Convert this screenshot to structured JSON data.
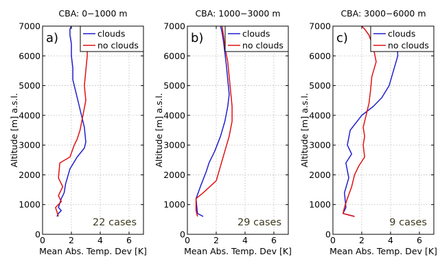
{
  "chart_data": [
    {
      "type": "line",
      "panel_label": "a)",
      "title": "CBA: 0−1000 m",
      "xlabel": "Mean Abs. Temp. Dev [K]",
      "ylabel": "Altitude [m] a.s.l.",
      "xlim": [
        0,
        7
      ],
      "ylim": [
        0,
        7000
      ],
      "xticks": [
        0,
        2,
        4,
        6
      ],
      "yticks": [
        0,
        1000,
        2000,
        3000,
        4000,
        5000,
        6000,
        7000
      ],
      "grid": true,
      "legend_position": "top-right",
      "annotation": "22 cases",
      "series": [
        {
          "name": "clouds",
          "color": "#1f1fcc",
          "x": [
            1.0,
            1.1,
            1.3,
            1.1,
            1.3,
            1.5,
            1.6,
            1.9,
            2.4,
            2.9,
            3.0,
            2.9,
            2.7,
            2.5,
            2.3,
            2.1,
            2.1,
            2.0,
            2.0,
            1.9,
            1.9,
            2.0
          ],
          "y": [
            600,
            700,
            800,
            900,
            1200,
            1400,
            1700,
            2200,
            2600,
            2900,
            3100,
            3600,
            4000,
            4400,
            4800,
            5200,
            5600,
            6000,
            6400,
            6700,
            6900,
            7000
          ]
        },
        {
          "name": "no clouds",
          "color": "#e01010",
          "x": [
            1.1,
            0.9,
            1.3,
            1.1,
            1.4,
            1.1,
            1.2,
            1.9,
            2.2,
            2.4,
            2.6,
            2.8,
            3.0,
            2.9,
            3.0,
            3.1,
            3.1,
            3.2,
            3.0,
            2.8,
            2.6
          ],
          "y": [
            600,
            900,
            1100,
            1300,
            1600,
            1900,
            2400,
            2600,
            3000,
            3200,
            3500,
            4000,
            4500,
            5000,
            5500,
            6000,
            6200,
            6500,
            6700,
            6900,
            7000
          ]
        }
      ]
    },
    {
      "type": "line",
      "panel_label": "b)",
      "title": "CBA: 1000−3000 m",
      "xlabel": "Mean Abs. Temp. Dev [K]",
      "ylabel": "Altitude [m] a.s.l.",
      "xlim": [
        0,
        7
      ],
      "ylim": [
        0,
        7000
      ],
      "xticks": [
        0,
        2,
        4,
        6
      ],
      "yticks": [
        0,
        1000,
        2000,
        3000,
        4000,
        5000,
        6000,
        7000
      ],
      "grid": true,
      "legend_position": "top-right",
      "annotation": "29 cases",
      "series": [
        {
          "name": "clouds",
          "color": "#1f1fcc",
          "x": [
            1.1,
            0.7,
            0.6,
            0.9,
            1.3,
            1.5,
            1.9,
            2.3,
            2.6,
            2.8,
            2.9,
            2.8,
            2.7,
            2.6,
            2.5,
            2.4,
            2.3
          ],
          "y": [
            600,
            700,
            1200,
            1600,
            2100,
            2400,
            2800,
            3300,
            3800,
            4300,
            4700,
            5200,
            5700,
            6100,
            6500,
            6800,
            7000
          ]
        },
        {
          "name": "no clouds",
          "color": "#e01010",
          "x": [
            0.7,
            0.6,
            0.6,
            1.1,
            2.0,
            2.3,
            2.6,
            2.9,
            3.1,
            3.1,
            3.0,
            2.9,
            2.8,
            2.6,
            2.5,
            2.4
          ],
          "y": [
            600,
            800,
            1200,
            1400,
            1800,
            2300,
            2800,
            3300,
            3800,
            4300,
            4800,
            5300,
            5800,
            6300,
            6700,
            7000
          ]
        }
      ]
    },
    {
      "type": "line",
      "panel_label": "c)",
      "title": "CBA: 3000−6000 m",
      "xlabel": "Mean Abs. Temp. Dev [K]",
      "ylabel": "Altitude [m] a.s.l.",
      "xlim": [
        0,
        7
      ],
      "ylim": [
        0,
        7000
      ],
      "xticks": [
        0,
        2,
        4,
        6
      ],
      "yticks": [
        0,
        1000,
        2000,
        3000,
        4000,
        5000,
        6000,
        7000
      ],
      "grid": true,
      "legend_position": "top-right",
      "annotation": "9 cases",
      "series": [
        {
          "name": "clouds",
          "color": "#1f1fcc",
          "x": [
            1.5,
            0.7,
            0.9,
            0.8,
            1.1,
            0.9,
            1.3,
            1.0,
            1.2,
            2.0,
            2.8,
            3.4,
            3.9,
            4.2,
            4.5,
            4.4
          ],
          "y": [
            600,
            700,
            900,
            1400,
            1900,
            2400,
            2700,
            3000,
            3500,
            4000,
            4300,
            4600,
            5000,
            5500,
            6000,
            7000
          ]
        },
        {
          "name": "no clouds",
          "color": "#e01010",
          "x": [
            1.5,
            0.7,
            0.8,
            1.0,
            1.3,
            1.5,
            1.8,
            2.2,
            2.1,
            2.2,
            2.1,
            2.3,
            2.5,
            2.6,
            2.7,
            3.0,
            2.8,
            2.5,
            2.2,
            2.0
          ],
          "y": [
            600,
            700,
            900,
            1200,
            1600,
            2000,
            2300,
            2600,
            3000,
            3300,
            3600,
            4000,
            4400,
            4800,
            5300,
            5800,
            6300,
            6700,
            6900,
            7000
          ]
        }
      ]
    }
  ]
}
